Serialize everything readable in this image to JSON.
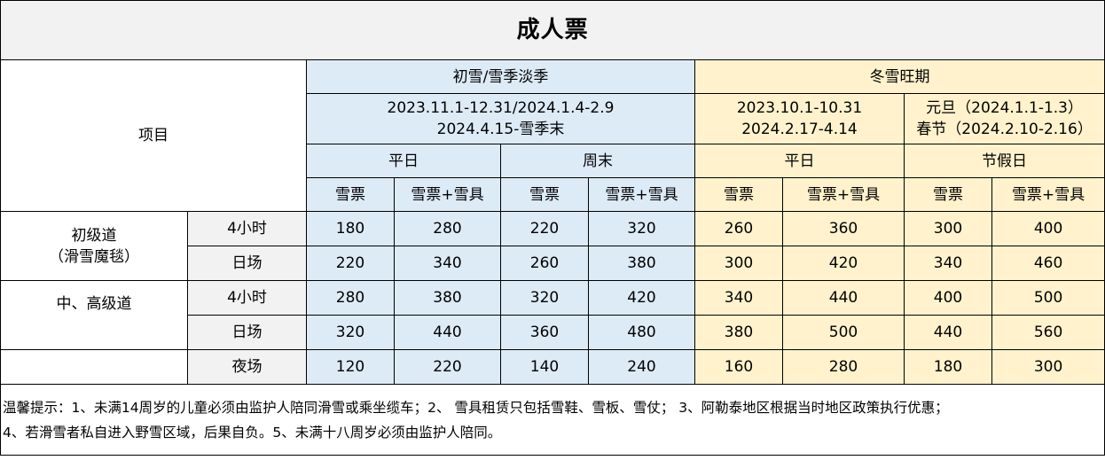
{
  "title": "成人票",
  "header": {
    "item_label": "项目",
    "low_season": {
      "name": "初雪/雪季淡季",
      "dates_line1": "2023.11.1-12.31/2024.1.4-2.9",
      "dates_line2": "2024.4.15-雪季末",
      "weekday": "平日",
      "weekend": "周末"
    },
    "peak_season": {
      "name": "冬雪旺期",
      "dates_a_line1": "2023.10.1-10.31",
      "dates_a_line2": "2024.2.17-4.14",
      "dates_b_line1": "元旦（2024.1.1-1.3）",
      "dates_b_line2": "春节（2024.2.10-2.16）",
      "weekday": "平日",
      "holiday": "节假日"
    },
    "ticket": "雪票",
    "ticket_gear": "雪票+雪具"
  },
  "rows": [
    {
      "group_line1": "初级道",
      "group_line2": "（滑雪魔毯）",
      "duration": "4小时",
      "prices": [
        "180",
        "280",
        "220",
        "320",
        "260",
        "360",
        "300",
        "400"
      ]
    },
    {
      "duration": "日场",
      "prices": [
        "220",
        "340",
        "260",
        "380",
        "300",
        "420",
        "340",
        "460"
      ]
    },
    {
      "group_line1": "中、高级道",
      "duration": "4小时",
      "prices": [
        "280",
        "380",
        "320",
        "420",
        "340",
        "440",
        "400",
        "500"
      ]
    },
    {
      "duration": "日场",
      "prices": [
        "320",
        "440",
        "360",
        "480",
        "380",
        "500",
        "440",
        "560"
      ]
    },
    {
      "group_line1": "",
      "duration": "夜场",
      "prices": [
        "120",
        "220",
        "140",
        "240",
        "160",
        "280",
        "180",
        "300"
      ]
    }
  ],
  "notes": {
    "line1": "温馨提示：1、未满14周岁的儿童必须由监护人陪同滑雪或乘坐缆车；2、 雪具租赁只包括雪鞋、雪板、雪仗； 3、阿勒泰地区根据当时地区政策执行优惠；",
    "line2": "4、若滑雪者私自进入野雪区域，后果自负。5、未满十八周岁必须由监护人陪同。"
  },
  "colors": {
    "low_season_bg": "#ddebf7",
    "peak_season_bg": "#fff2cc",
    "header_bg": "#f2f2f2"
  }
}
